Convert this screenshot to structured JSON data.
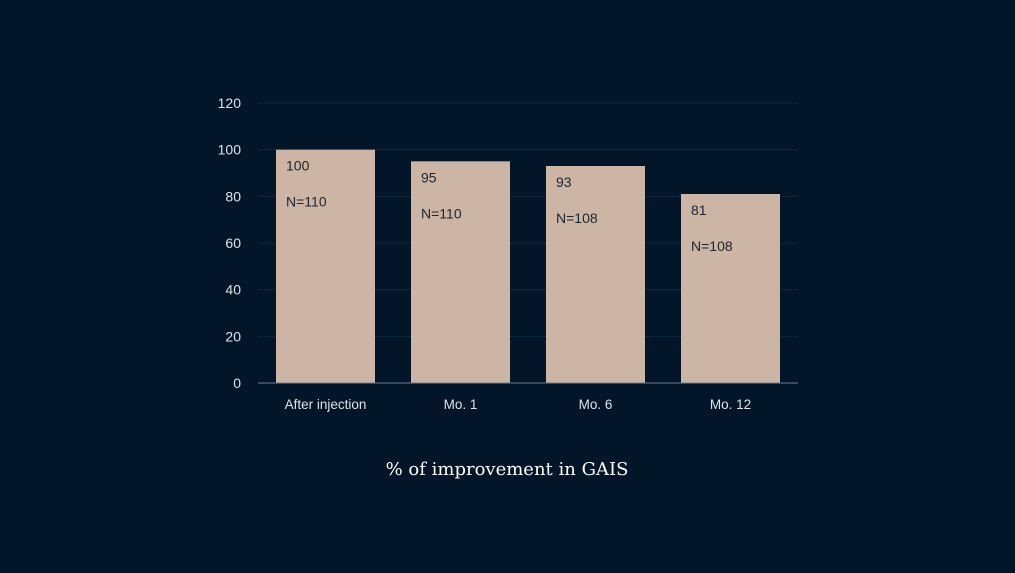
{
  "chart_data": {
    "type": "bar",
    "title": "% of improvement in GAIS",
    "xlabel": "",
    "ylabel": "",
    "ylim": [
      0,
      120
    ],
    "yticks": [
      0,
      20,
      40,
      60,
      80,
      100,
      120
    ],
    "grid": true,
    "categories": [
      "After injection",
      "Mo. 1",
      "Mo. 6",
      "Mo. 12"
    ],
    "values": [
      100,
      95,
      93,
      81
    ],
    "value_labels": [
      "100",
      "95",
      "93",
      "81"
    ],
    "n_labels": [
      "N=110",
      "N=110",
      "N=108",
      "N=108"
    ],
    "colors": {
      "bar": "#cdb5a5",
      "background": "#021529",
      "text": "#dde3ea"
    }
  }
}
